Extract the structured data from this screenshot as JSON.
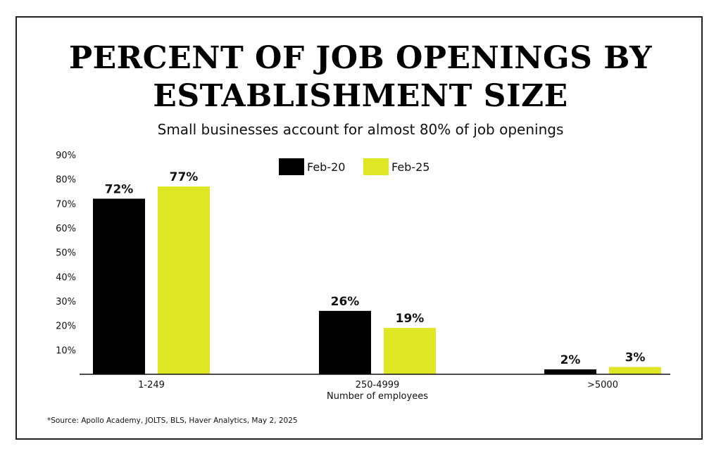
{
  "chart_data": {
    "type": "bar",
    "title": "PERCENT OF JOB OPENINGS BY ESTABLISHMENT SIZE",
    "title_lines": [
      "PERCENT OF JOB OPENINGS BY",
      "ESTABLISHMENT SIZE"
    ],
    "subtitle": "Small businesses account for almost 80% of job openings",
    "xlabel": "Number of employees",
    "ylabel": "",
    "categories": [
      "1-249",
      "250-4999",
      ">5000"
    ],
    "series": [
      {
        "name": "Feb-20",
        "color": "#000000",
        "values": [
          72,
          26,
          2
        ],
        "labels": [
          "72%",
          "26%",
          "2%"
        ]
      },
      {
        "name": "Feb-25",
        "color": "#dfe623",
        "values": [
          77,
          19,
          3
        ],
        "labels": [
          "77%",
          "19%",
          "3%"
        ]
      }
    ],
    "ylim": [
      0,
      90
    ],
    "yticks": [
      10,
      20,
      30,
      40,
      50,
      60,
      70,
      80,
      90
    ],
    "ytick_labels": [
      "10%",
      "20%",
      "30%",
      "40%",
      "50%",
      "60%",
      "70%",
      "80%",
      "90%"
    ],
    "legend_position": "top-center",
    "grid": false
  },
  "footer": {
    "source": "*Source: Apollo Academy, JOLTS, BLS, Haver Analytics, May 2, 2025"
  }
}
